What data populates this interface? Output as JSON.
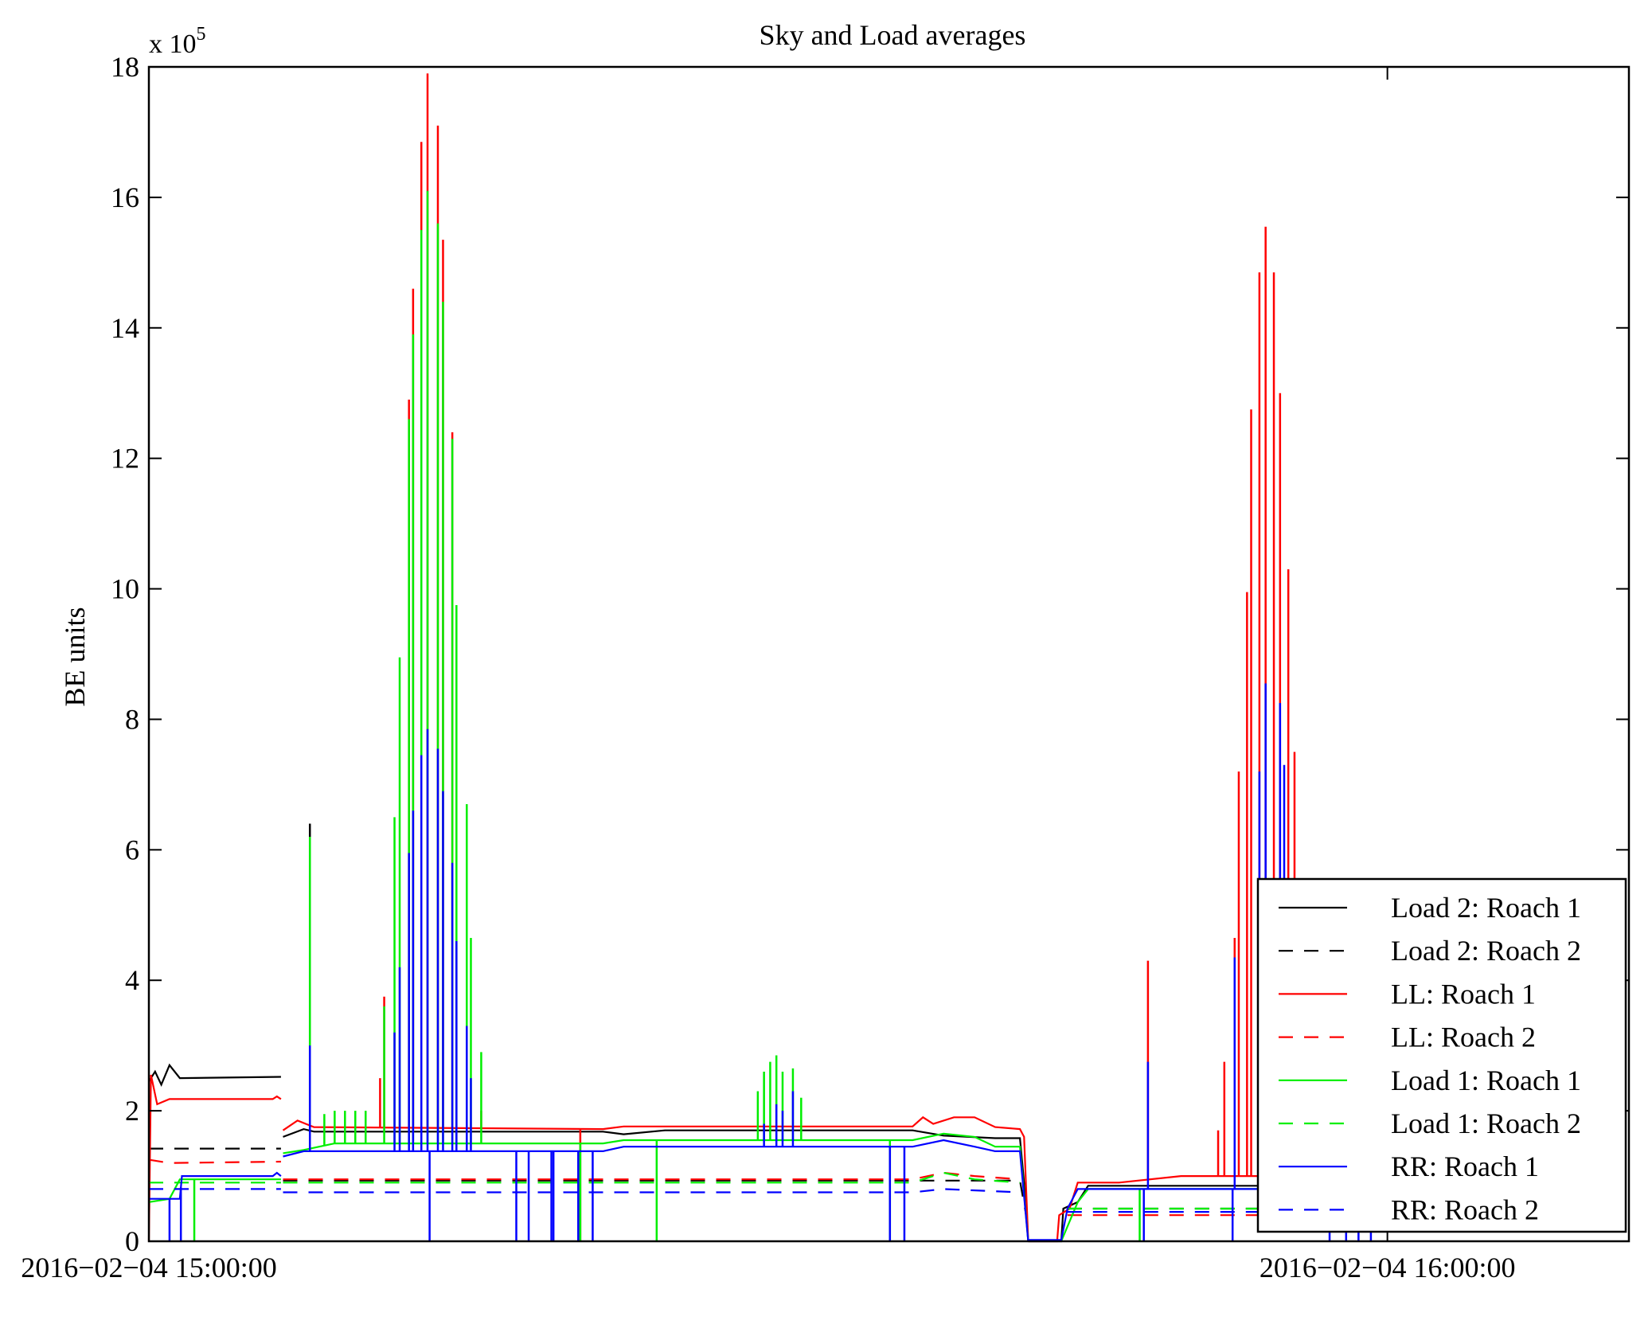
{
  "chart_data": {
    "type": "line",
    "title": "Sky and Load averages",
    "xlabel": "",
    "ylabel": "BE units",
    "y_multiplier_base": "x 10",
    "y_multiplier_exp": "5",
    "x_unit": "minutes after 2016-02-04 15:00:00",
    "xlim": [
      0,
      71.7
    ],
    "ylim": [
      0,
      18
    ],
    "yticks": [
      0,
      2,
      4,
      6,
      8,
      10,
      12,
      14,
      16,
      18
    ],
    "xticks": [
      {
        "value": 0,
        "label": "2016−02−04 15:00:00"
      },
      {
        "value": 60,
        "label": "2016−02−04 16:00:00"
      }
    ],
    "grid": false,
    "legend_position": "bottom-right",
    "series": [
      {
        "name": "Load 2: Roach 1",
        "color": "#000000",
        "dash": false,
        "segments": [
          [
            [
              0,
              2.45
            ],
            [
              0.3,
              2.6
            ],
            [
              0.6,
              2.4
            ],
            [
              1,
              2.7
            ],
            [
              1.5,
              2.5
            ],
            [
              6.4,
              2.52
            ]
          ],
          [
            [
              6.5,
              1.6
            ],
            [
              7.5,
              1.72
            ],
            [
              8,
              1.68
            ],
            [
              22,
              1.68
            ],
            [
              23,
              1.64
            ],
            [
              25,
              1.7
            ],
            [
              37,
              1.7
            ],
            [
              38.5,
              1.62
            ],
            [
              41,
              1.58
            ],
            [
              42.2,
              1.58
            ],
            [
              42.4,
              0.9
            ],
            [
              42.6,
              0
            ]
          ],
          [
            [
              42.6,
              0
            ],
            [
              44.2,
              0
            ],
            [
              44.3,
              0.5
            ],
            [
              45,
              0.6
            ],
            [
              45.5,
              0.85
            ],
            [
              59.6,
              0.85
            ]
          ]
        ],
        "spikes": [
          [
            7.8,
            6.4
          ]
        ],
        "dips": []
      },
      {
        "name": "Load 2: Roach 2",
        "color": "#000000",
        "dash": true,
        "segments": [
          [
            [
              0,
              1.42
            ],
            [
              6.4,
              1.42
            ]
          ],
          [
            [
              6.5,
              0.93
            ],
            [
              42.2,
              0.93
            ],
            [
              42.5,
              0.4
            ]
          ],
          [
            [
              44.5,
              0.5
            ],
            [
              59.6,
              0.5
            ]
          ]
        ],
        "spikes": [],
        "dips": []
      },
      {
        "name": "LL: Roach 1",
        "color": "#ff0000",
        "dash": false,
        "segments": [
          [
            [
              0,
              0
            ],
            [
              0.1,
              2.55
            ],
            [
              0.4,
              2.1
            ],
            [
              1,
              2.18
            ],
            [
              6.0,
              2.18
            ],
            [
              6.2,
              2.22
            ],
            [
              6.4,
              2.18
            ]
          ],
          [
            [
              6.5,
              1.7
            ],
            [
              7.2,
              1.85
            ],
            [
              8,
              1.75
            ],
            [
              22,
              1.72
            ],
            [
              23,
              1.76
            ],
            [
              37,
              1.76
            ],
            [
              37.5,
              1.9
            ],
            [
              38,
              1.8
            ],
            [
              39,
              1.9
            ],
            [
              40,
              1.9
            ],
            [
              41,
              1.75
            ],
            [
              42.2,
              1.72
            ],
            [
              42.4,
              1.6
            ],
            [
              42.6,
              0
            ]
          ],
          [
            [
              42.6,
              0
            ],
            [
              44.0,
              0
            ],
            [
              44.1,
              0.4
            ],
            [
              44.6,
              0.5
            ],
            [
              45,
              0.9
            ],
            [
              47,
              0.9
            ],
            [
              50,
              1.0
            ],
            [
              59.6,
              1.0
            ]
          ]
        ],
        "spikes": [
          [
            11.2,
            2.5
          ],
          [
            11.4,
            3.75
          ],
          [
            12.6,
            12.9
          ],
          [
            12.8,
            14.6
          ],
          [
            13.2,
            16.85
          ],
          [
            13.5,
            17.9
          ],
          [
            14.0,
            17.1
          ],
          [
            14.25,
            15.35
          ],
          [
            14.7,
            12.4
          ],
          [
            16.1,
            2.0
          ],
          [
            48.4,
            4.3
          ],
          [
            51.8,
            1.7
          ],
          [
            52.1,
            2.75
          ],
          [
            52.6,
            4.65
          ],
          [
            52.8,
            7.2
          ],
          [
            53.2,
            9.95
          ],
          [
            53.4,
            12.75
          ],
          [
            53.8,
            14.85
          ],
          [
            54.1,
            15.55
          ],
          [
            54.5,
            14.85
          ],
          [
            54.8,
            13.0
          ],
          [
            55.2,
            10.3
          ],
          [
            55.5,
            7.5
          ]
        ],
        "dips": [
          20.9
        ]
      },
      {
        "name": "LL: Roach 2",
        "color": "#ff0000",
        "dash": true,
        "segments": [
          [
            [
              0,
              1.25
            ],
            [
              1,
              1.2
            ],
            [
              6.4,
              1.22
            ]
          ],
          [
            [
              6.5,
              0.95
            ],
            [
              37,
              0.95
            ],
            [
              38.5,
              1.05
            ],
            [
              40,
              1.0
            ],
            [
              42.2,
              0.95
            ]
          ],
          [
            [
              44.5,
              0.4
            ],
            [
              59.6,
              0.4
            ]
          ]
        ],
        "spikes": [],
        "dips": []
      },
      {
        "name": "Load 1: Roach 1",
        "color": "#00ee00",
        "dash": false,
        "segments": [
          [
            [
              0,
              0.6
            ],
            [
              1,
              0.65
            ],
            [
              1.5,
              0.95
            ],
            [
              6.4,
              0.95
            ]
          ],
          [
            [
              6.5,
              1.35
            ],
            [
              7.5,
              1.4
            ],
            [
              9,
              1.5
            ],
            [
              22,
              1.5
            ],
            [
              23,
              1.55
            ],
            [
              37,
              1.55
            ],
            [
              38.5,
              1.65
            ],
            [
              40,
              1.6
            ],
            [
              41,
              1.45
            ],
            [
              42.2,
              1.45
            ],
            [
              42.6,
              0
            ]
          ],
          [
            [
              44.2,
              0
            ],
            [
              45,
              0.6
            ],
            [
              45.5,
              0.8
            ],
            [
              59.6,
              0.8
            ]
          ]
        ],
        "spikes": [
          [
            7.8,
            6.2
          ],
          [
            8.5,
            1.95
          ],
          [
            9,
            2.0
          ],
          [
            9.5,
            2.0
          ],
          [
            10,
            2.0
          ],
          [
            10.5,
            2.0
          ],
          [
            11.4,
            3.6
          ],
          [
            11.9,
            6.5
          ],
          [
            12.15,
            8.95
          ],
          [
            12.6,
            12.6
          ],
          [
            12.8,
            13.9
          ],
          [
            13.2,
            15.5
          ],
          [
            13.5,
            16.1
          ],
          [
            14.0,
            15.6
          ],
          [
            14.25,
            14.4
          ],
          [
            14.7,
            12.3
          ],
          [
            14.9,
            9.75
          ],
          [
            15.4,
            6.7
          ],
          [
            15.6,
            4.65
          ],
          [
            16.1,
            2.9
          ],
          [
            29.5,
            2.3
          ],
          [
            29.8,
            2.6
          ],
          [
            30.1,
            2.75
          ],
          [
            30.4,
            2.85
          ],
          [
            30.7,
            2.6
          ],
          [
            31.2,
            2.65
          ],
          [
            31.6,
            2.2
          ]
        ],
        "dips": [
          2.2,
          20.9,
          24.6,
          35.9,
          48.0
        ]
      },
      {
        "name": "Load 1: Roach 2",
        "color": "#00ee00",
        "dash": true,
        "segments": [
          [
            [
              0,
              0.9
            ],
            [
              6.4,
              0.9
            ]
          ],
          [
            [
              6.5,
              0.9
            ],
            [
              37,
              0.9
            ],
            [
              38.5,
              1.05
            ],
            [
              40,
              0.95
            ],
            [
              42.2,
              0.9
            ]
          ],
          [
            [
              44.5,
              0.5
            ],
            [
              59.6,
              0.5
            ]
          ]
        ],
        "spikes": [],
        "dips": []
      },
      {
        "name": "RR: Roach 1",
        "color": "#0000ff",
        "dash": false,
        "segments": [
          [
            [
              0,
              0.65
            ],
            [
              1.5,
              0.65
            ],
            [
              1.6,
              1.0
            ],
            [
              6.0,
              1.0
            ],
            [
              6.2,
              1.05
            ],
            [
              6.4,
              1.0
            ]
          ],
          [
            [
              6.5,
              1.3
            ],
            [
              7.5,
              1.38
            ],
            [
              22,
              1.38
            ],
            [
              23,
              1.45
            ],
            [
              37,
              1.45
            ],
            [
              38.5,
              1.55
            ],
            [
              40,
              1.45
            ],
            [
              41,
              1.38
            ],
            [
              42.2,
              1.38
            ],
            [
              42.6,
              0
            ]
          ],
          [
            [
              42.6,
              0.02
            ],
            [
              44.2,
              0.02
            ],
            [
              44.5,
              0.5
            ],
            [
              45,
              0.8
            ],
            [
              59.6,
              0.8
            ]
          ]
        ],
        "spikes": [
          [
            7.8,
            3.0
          ],
          [
            11.9,
            3.2
          ],
          [
            12.15,
            4.2
          ],
          [
            12.6,
            5.95
          ],
          [
            12.8,
            6.6
          ],
          [
            13.2,
            7.45
          ],
          [
            13.5,
            7.85
          ],
          [
            14.0,
            7.55
          ],
          [
            14.25,
            6.9
          ],
          [
            14.7,
            5.8
          ],
          [
            14.9,
            4.6
          ],
          [
            15.4,
            3.3
          ],
          [
            15.6,
            2.5
          ],
          [
            29.8,
            1.8
          ],
          [
            30.4,
            2.1
          ],
          [
            30.7,
            2.0
          ],
          [
            31.2,
            2.3
          ],
          [
            48.4,
            2.75
          ],
          [
            52.6,
            4.35
          ],
          [
            53.8,
            7.2
          ],
          [
            54.1,
            8.55
          ],
          [
            54.8,
            8.25
          ],
          [
            55.0,
            7.3
          ]
        ],
        "dips": [
          1.0,
          1.55,
          6.47,
          13.6,
          17.8,
          18.4,
          19.5,
          19.6,
          20.8,
          21.5,
          35.9,
          36.6,
          48.2,
          52.5,
          57.2,
          58.0,
          58.6,
          59.2
        ]
      },
      {
        "name": "RR: Roach 2",
        "color": "#0000ff",
        "dash": true,
        "segments": [
          [
            [
              0,
              0.8
            ],
            [
              6.4,
              0.8
            ]
          ],
          [
            [
              6.5,
              0.75
            ],
            [
              37,
              0.75
            ],
            [
              38.5,
              0.8
            ],
            [
              42.2,
              0.75
            ]
          ],
          [
            [
              44.5,
              0.45
            ],
            [
              59.6,
              0.45
            ]
          ]
        ],
        "spikes": [],
        "dips": []
      }
    ]
  }
}
